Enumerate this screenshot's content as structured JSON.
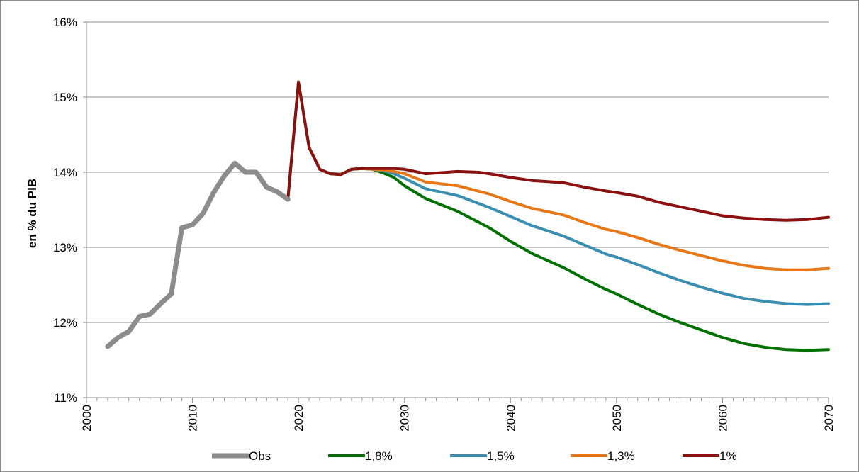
{
  "chart_data": {
    "type": "line",
    "ylabel": "en % du PIB",
    "xlabel": "",
    "xlim": [
      2000,
      2070
    ],
    "ylim": [
      11,
      16
    ],
    "xticks": [
      "2000",
      "2010",
      "2020",
      "2030",
      "2040",
      "2050",
      "2060",
      "2070"
    ],
    "yticks": [
      "11%",
      "12%",
      "13%",
      "14%",
      "15%",
      "16%"
    ],
    "grid": "horizontal",
    "legend_position": "bottom",
    "series": [
      {
        "name": "Obs",
        "color": "#8c8c8c",
        "points": [
          [
            2002,
            11.68
          ],
          [
            2003,
            11.8
          ],
          [
            2004,
            11.88
          ],
          [
            2005,
            12.08
          ],
          [
            2006,
            12.11
          ],
          [
            2007,
            12.25
          ],
          [
            2008,
            12.38
          ],
          [
            2009,
            13.26
          ],
          [
            2010,
            13.3
          ],
          [
            2011,
            13.45
          ],
          [
            2012,
            13.73
          ],
          [
            2013,
            13.95
          ],
          [
            2014,
            14.12
          ],
          [
            2015,
            14.0
          ],
          [
            2016,
            14.0
          ],
          [
            2017,
            13.8
          ],
          [
            2018,
            13.74
          ],
          [
            2019,
            13.64
          ]
        ]
      },
      {
        "name": "1,8%",
        "color": "#007000",
        "points": [
          [
            2019,
            13.64
          ],
          [
            2020,
            15.2
          ],
          [
            2021,
            14.33
          ],
          [
            2022,
            14.04
          ],
          [
            2023,
            13.98
          ],
          [
            2024,
            13.97
          ],
          [
            2025,
            14.04
          ],
          [
            2026,
            14.05
          ],
          [
            2027,
            14.04
          ],
          [
            2028,
            13.99
          ],
          [
            2029,
            13.93
          ],
          [
            2030,
            13.82
          ],
          [
            2032,
            13.65
          ],
          [
            2035,
            13.48
          ],
          [
            2038,
            13.26
          ],
          [
            2040,
            13.08
          ],
          [
            2042,
            12.92
          ],
          [
            2045,
            12.73
          ],
          [
            2047,
            12.58
          ],
          [
            2049,
            12.44
          ],
          [
            2050,
            12.38
          ],
          [
            2052,
            12.24
          ],
          [
            2054,
            12.11
          ],
          [
            2056,
            12.0
          ],
          [
            2058,
            11.9
          ],
          [
            2060,
            11.8
          ],
          [
            2062,
            11.72
          ],
          [
            2064,
            11.67
          ],
          [
            2066,
            11.64
          ],
          [
            2068,
            11.63
          ],
          [
            2070,
            11.64
          ]
        ]
      },
      {
        "name": "1,5%",
        "color": "#3a8fb0",
        "points": [
          [
            2025,
            14.04
          ],
          [
            2026,
            14.05
          ],
          [
            2027,
            14.04
          ],
          [
            2028,
            14.02
          ],
          [
            2029,
            13.98
          ],
          [
            2030,
            13.92
          ],
          [
            2032,
            13.78
          ],
          [
            2035,
            13.69
          ],
          [
            2038,
            13.53
          ],
          [
            2040,
            13.41
          ],
          [
            2042,
            13.29
          ],
          [
            2045,
            13.15
          ],
          [
            2047,
            13.03
          ],
          [
            2049,
            12.91
          ],
          [
            2050,
            12.87
          ],
          [
            2052,
            12.77
          ],
          [
            2054,
            12.66
          ],
          [
            2056,
            12.56
          ],
          [
            2058,
            12.47
          ],
          [
            2060,
            12.39
          ],
          [
            2062,
            12.32
          ],
          [
            2064,
            12.28
          ],
          [
            2066,
            12.25
          ],
          [
            2068,
            12.24
          ],
          [
            2070,
            12.25
          ]
        ]
      },
      {
        "name": "1,3%",
        "color": "#e87817",
        "points": [
          [
            2025,
            14.04
          ],
          [
            2026,
            14.05
          ],
          [
            2027,
            14.04
          ],
          [
            2028,
            14.03
          ],
          [
            2029,
            14.01
          ],
          [
            2030,
            13.98
          ],
          [
            2032,
            13.87
          ],
          [
            2035,
            13.82
          ],
          [
            2038,
            13.71
          ],
          [
            2040,
            13.61
          ],
          [
            2042,
            13.52
          ],
          [
            2045,
            13.43
          ],
          [
            2047,
            13.33
          ],
          [
            2049,
            13.24
          ],
          [
            2050,
            13.21
          ],
          [
            2052,
            13.13
          ],
          [
            2054,
            13.04
          ],
          [
            2056,
            12.96
          ],
          [
            2058,
            12.89
          ],
          [
            2060,
            12.82
          ],
          [
            2062,
            12.76
          ],
          [
            2064,
            12.72
          ],
          [
            2066,
            12.7
          ],
          [
            2068,
            12.7
          ],
          [
            2070,
            12.72
          ]
        ]
      },
      {
        "name": "1%",
        "color": "#8b1010",
        "points": [
          [
            2019,
            13.64
          ],
          [
            2020,
            15.2
          ],
          [
            2021,
            14.33
          ],
          [
            2022,
            14.04
          ],
          [
            2023,
            13.98
          ],
          [
            2024,
            13.97
          ],
          [
            2025,
            14.04
          ],
          [
            2026,
            14.05
          ],
          [
            2027,
            14.05
          ],
          [
            2029,
            14.05
          ],
          [
            2030,
            14.04
          ],
          [
            2032,
            13.98
          ],
          [
            2034,
            14.0
          ],
          [
            2035,
            14.01
          ],
          [
            2037,
            14.0
          ],
          [
            2038,
            13.98
          ],
          [
            2040,
            13.93
          ],
          [
            2042,
            13.89
          ],
          [
            2045,
            13.86
          ],
          [
            2047,
            13.8
          ],
          [
            2049,
            13.75
          ],
          [
            2050,
            13.73
          ],
          [
            2052,
            13.68
          ],
          [
            2054,
            13.6
          ],
          [
            2056,
            13.54
          ],
          [
            2058,
            13.48
          ],
          [
            2060,
            13.42
          ],
          [
            2062,
            13.39
          ],
          [
            2064,
            13.37
          ],
          [
            2066,
            13.36
          ],
          [
            2068,
            13.37
          ],
          [
            2070,
            13.4
          ]
        ]
      }
    ]
  }
}
